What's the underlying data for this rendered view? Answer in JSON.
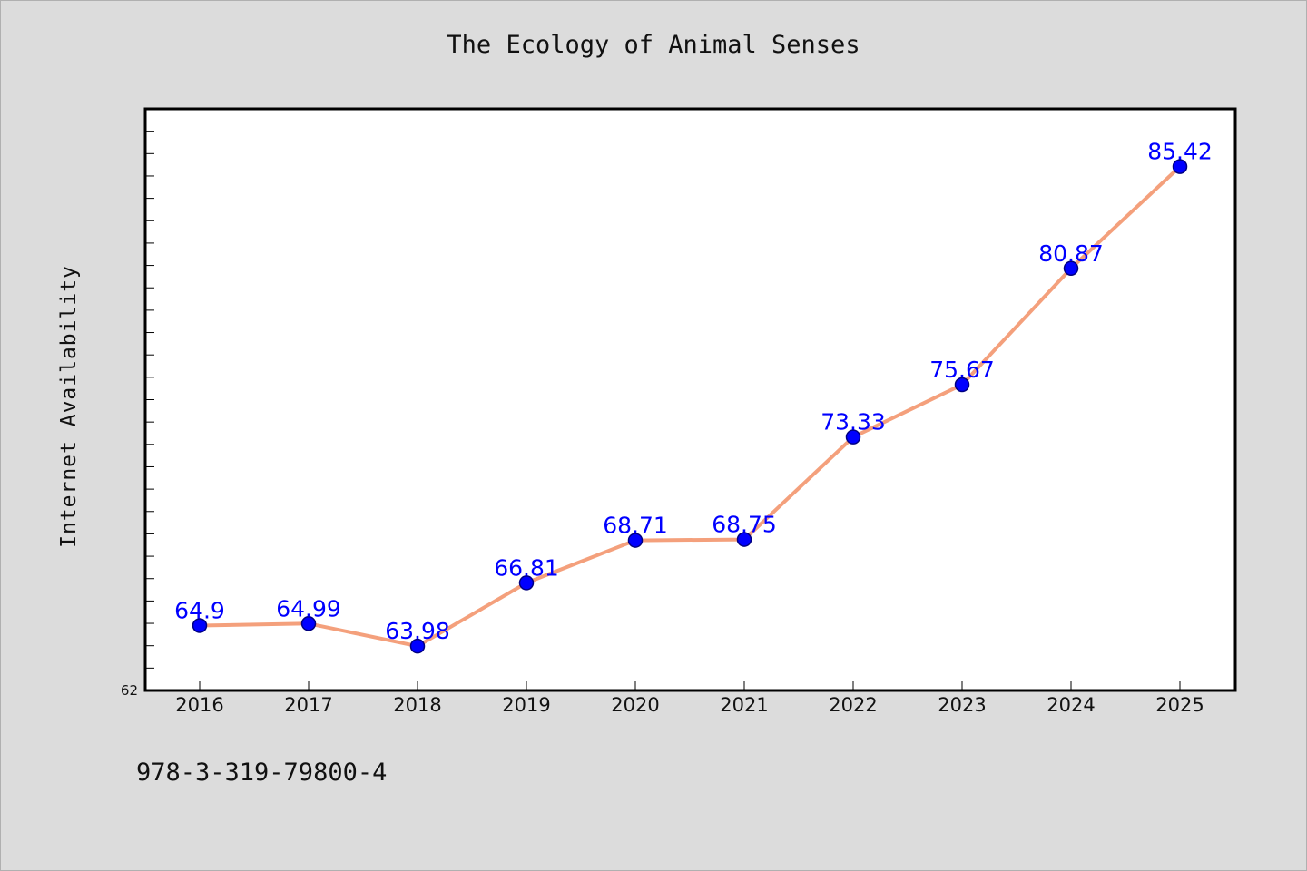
{
  "chart_data": {
    "type": "line",
    "title": "The Ecology of Animal Senses",
    "xlabel": "",
    "ylabel": "Internet Availability",
    "categories": [
      "2016",
      "2017",
      "2018",
      "2019",
      "2020",
      "2021",
      "2022",
      "2023",
      "2024",
      "2025"
    ],
    "series": [
      {
        "values": [
          64.9,
          64.99,
          63.98,
          66.81,
          68.71,
          68.75,
          73.33,
          75.67,
          80.87,
          85.42
        ],
        "data_labels": [
          "64.9",
          "64.99",
          "63.98",
          "66.81",
          "68.71",
          "68.75",
          "73.33",
          "75.67",
          "80.87",
          "85.42"
        ]
      }
    ],
    "ylim": [
      62,
      88
    ],
    "y_tick_labels": [
      "62"
    ],
    "grid": false,
    "colors": {
      "line": "#f4a07c",
      "marker": "#0000ff",
      "marker_edge": "#000080",
      "data_label": "#0000ff",
      "plot_background": "#ffffff",
      "figure_background": "#dcdcdc"
    }
  },
  "footer": {
    "code": "978-3-319-79800-4"
  }
}
